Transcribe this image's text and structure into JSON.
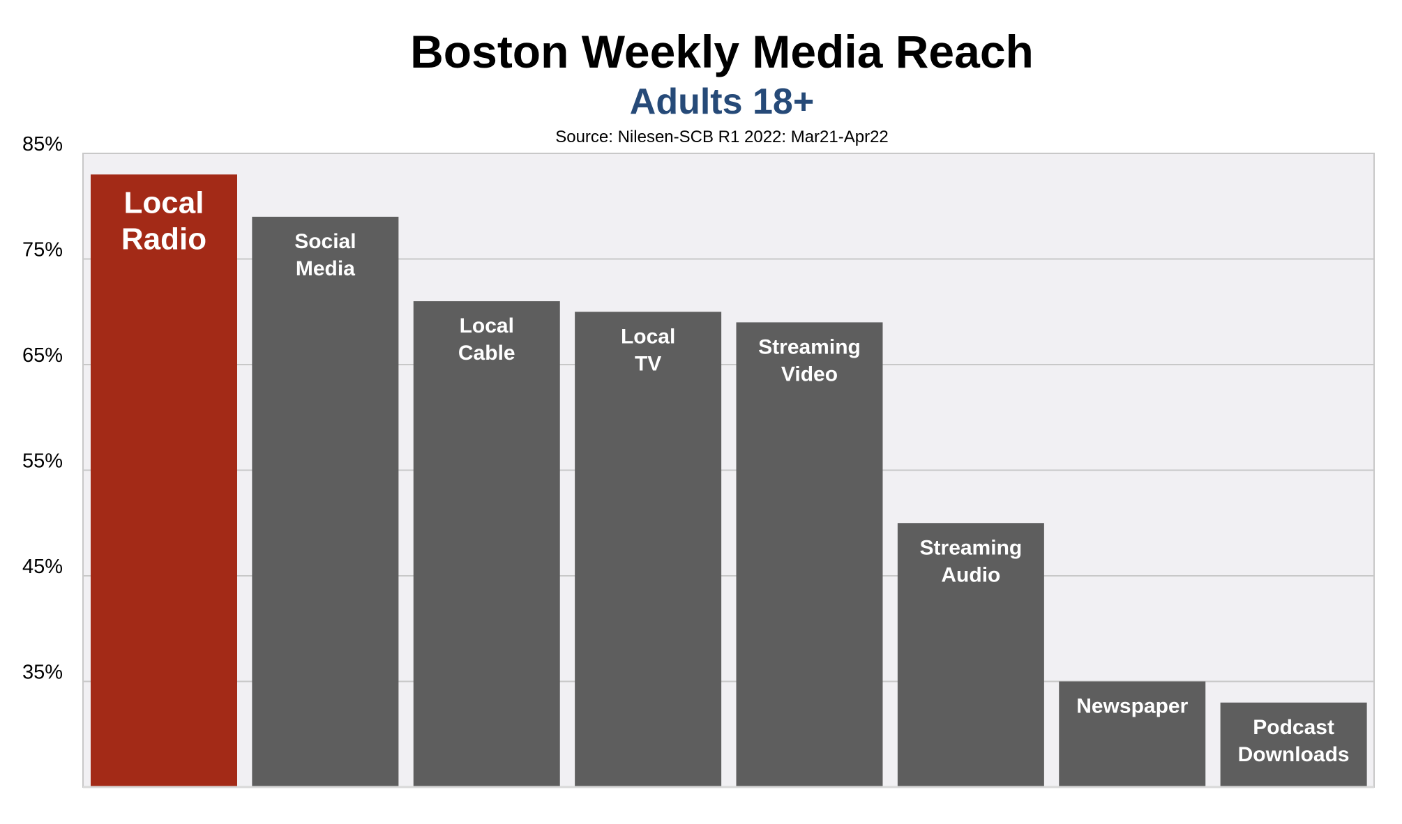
{
  "chart_data": {
    "type": "bar",
    "title": "Boston Weekly Media Reach",
    "subtitle": "Adults 18+",
    "source": "Source: Nilesen-SCB R1 2022: Mar21-Apr22",
    "xlabel": "",
    "ylabel": "",
    "ylim": [
      25,
      85
    ],
    "yticks": [
      35,
      45,
      55,
      65,
      75,
      85
    ],
    "ytick_labels": [
      "35%",
      "45%",
      "55%",
      "65%",
      "75%",
      "85%"
    ],
    "grid": true,
    "categories": [
      "Local Radio",
      "Social Media",
      "Local Cable",
      "Local TV",
      "Streaming Video",
      "Streaming Audio",
      "Newspaper",
      "Podcast Downloads"
    ],
    "bar_labels": [
      [
        "Local",
        "Radio"
      ],
      [
        "Social",
        "Media"
      ],
      [
        "Local",
        "Cable"
      ],
      [
        "Local",
        "TV"
      ],
      [
        "Streaming",
        "Video"
      ],
      [
        "Streaming",
        "Audio"
      ],
      [
        "Newspaper"
      ],
      [
        "Podcast",
        "Downloads"
      ]
    ],
    "values": [
      83,
      79,
      71,
      70,
      69,
      50,
      35,
      33
    ],
    "highlight_index": 0,
    "colors": {
      "highlight": "#a32a17",
      "bar": "#5e5e5e",
      "plot_background": "#f1f0f3",
      "grid": "#c8c8c8",
      "subtitle": "#264a78"
    }
  }
}
